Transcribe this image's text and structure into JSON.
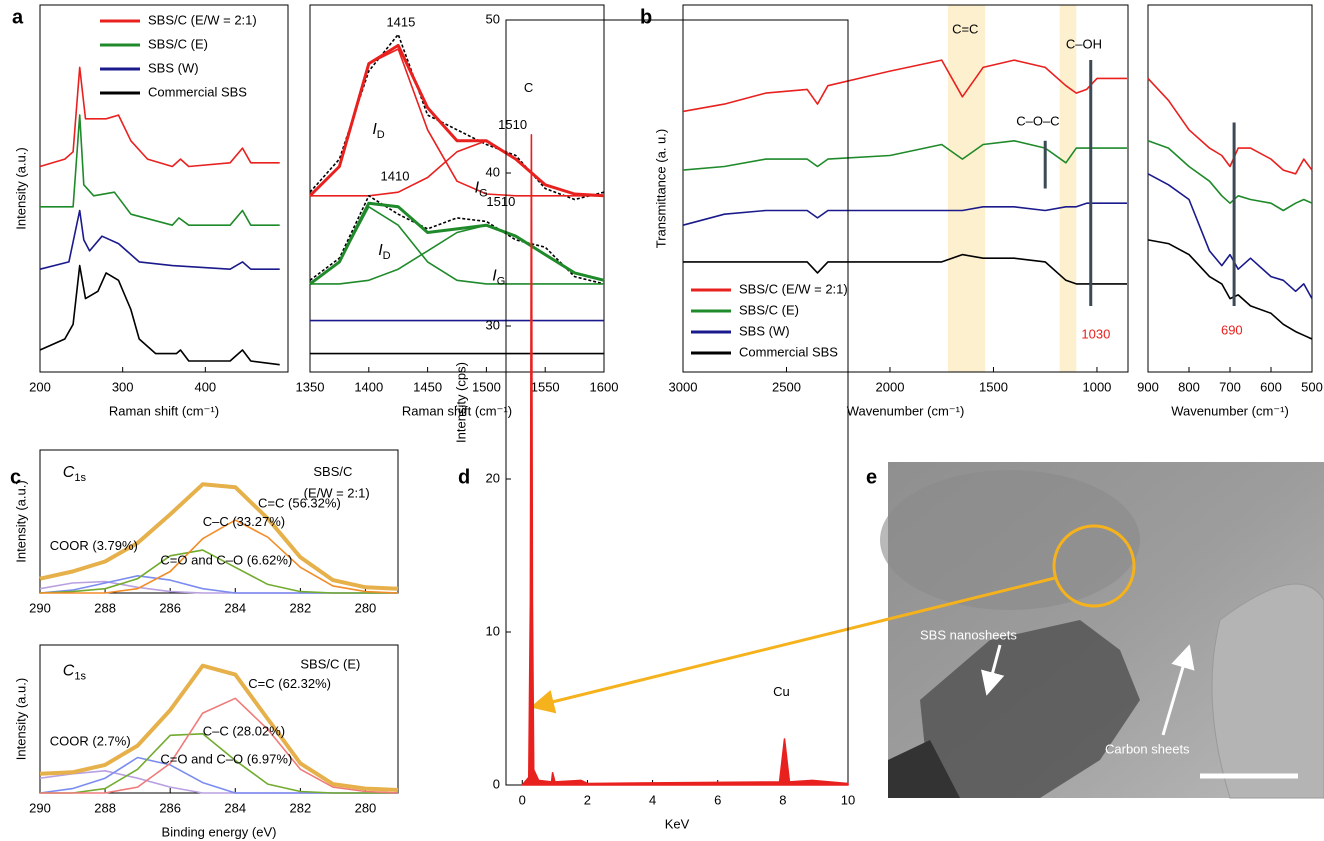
{
  "chart_data": [
    {
      "type": "line",
      "panel": "a",
      "xlabel": "Raman shift (cm⁻¹)",
      "ylabel": "Intensity (a.u.)",
      "xlim": [
        200,
        500
      ],
      "ylim": [
        0,
        10
      ],
      "xticks": [
        200,
        300,
        400
      ],
      "legend": "upper left",
      "series": [
        {
          "name": "SBS/C (E/W = 2:1)",
          "color": "#e8211f",
          "x": [
            200,
            230,
            240,
            248,
            255,
            265,
            280,
            295,
            310,
            330,
            360,
            370,
            380,
            430,
            445,
            455,
            490
          ],
          "values": [
            5.6,
            5.8,
            6.0,
            8.3,
            6.9,
            6.9,
            6.9,
            7.0,
            6.3,
            5.8,
            5.6,
            5.8,
            5.6,
            5.7,
            6.1,
            5.7,
            5.7
          ]
        },
        {
          "name": "SBS/C (E)",
          "color": "#1f8a2a",
          "x": [
            200,
            240,
            248,
            253,
            265,
            290,
            310,
            360,
            368,
            380,
            430,
            445,
            455,
            490
          ],
          "values": [
            4.5,
            4.5,
            7.0,
            5.1,
            4.8,
            4.9,
            4.3,
            4.0,
            4.2,
            4.0,
            4.0,
            4.4,
            4.0,
            4.0
          ]
        },
        {
          "name": "SBS (W)",
          "color": "#1a1a8c",
          "x": [
            200,
            235,
            248,
            253,
            260,
            275,
            295,
            320,
            360,
            430,
            445,
            455,
            490
          ],
          "values": [
            2.8,
            3.0,
            4.4,
            3.6,
            3.3,
            3.7,
            3.5,
            3.0,
            2.9,
            2.8,
            3.0,
            2.8,
            2.8
          ]
        },
        {
          "name": "Commercial SBS",
          "color": "#000000",
          "x": [
            200,
            230,
            240,
            248,
            255,
            270,
            280,
            295,
            310,
            320,
            340,
            365,
            370,
            380,
            430,
            445,
            455,
            490
          ],
          "values": [
            0.6,
            0.9,
            1.3,
            2.9,
            2.0,
            2.2,
            2.7,
            2.5,
            1.7,
            0.9,
            0.5,
            0.5,
            0.6,
            0.3,
            0.3,
            0.6,
            0.3,
            0.2
          ]
        }
      ]
    },
    {
      "type": "line",
      "xlabel": "Raman shift (cm⁻¹)",
      "xlim": [
        1350,
        1600
      ],
      "ylim": [
        0,
        10
      ],
      "xticks": [
        1350,
        1400,
        1450,
        1500,
        1550,
        1600
      ],
      "x": [
        1350,
        1375,
        1400,
        1425,
        1450,
        1475,
        1500,
        1525,
        1550,
        1575,
        1600
      ],
      "series": [
        {
          "color": "#000000",
          "style": "dashed",
          "values": [
            4.9,
            5.8,
            8.2,
            9.2,
            7.0,
            6.6,
            6.2,
            5.9,
            5.0,
            4.7,
            4.9
          ]
        },
        {
          "color": "#e8211f",
          "values": [
            4.8,
            5.6,
            8.4,
            8.8,
            6.6,
            5.2,
            4.85,
            4.8,
            4.8,
            4.8,
            4.8
          ]
        },
        {
          "color": "#e8211f",
          "values": [
            4.8,
            4.8,
            4.8,
            4.9,
            5.3,
            6.0,
            6.3,
            5.8,
            5.1,
            4.85,
            4.8
          ]
        },
        {
          "color": "#e8211f",
          "width": 3,
          "values": [
            4.8,
            5.6,
            8.4,
            8.9,
            7.2,
            6.3,
            6.3,
            5.8,
            5.1,
            4.85,
            4.8
          ]
        },
        {
          "color": "#000000",
          "style": "dashed",
          "values": [
            2.5,
            3.1,
            4.8,
            4.3,
            3.9,
            4.2,
            4.1,
            3.6,
            3.4,
            2.6,
            2.4
          ]
        },
        {
          "color": "#1f8a2a",
          "values": [
            2.4,
            3.0,
            4.5,
            4.0,
            3.0,
            2.5,
            2.4,
            2.4,
            2.4,
            2.4,
            2.4
          ]
        },
        {
          "color": "#1f8a2a",
          "values": [
            2.4,
            2.4,
            2.5,
            2.8,
            3.3,
            3.8,
            4.0,
            3.7,
            3.2,
            2.7,
            2.5
          ]
        },
        {
          "color": "#1f8a2a",
          "width": 3,
          "values": [
            2.4,
            3.0,
            4.6,
            4.5,
            3.8,
            3.9,
            4.0,
            3.7,
            3.2,
            2.7,
            2.5
          ]
        },
        {
          "color": "#1a1a8c",
          "values": [
            1.4,
            1.4,
            1.4,
            1.4,
            1.4,
            1.4,
            1.4,
            1.4,
            1.4,
            1.4,
            1.4
          ]
        },
        {
          "color": "#000000",
          "values": [
            0.5,
            0.5,
            0.5,
            0.5,
            0.5,
            0.5,
            0.5,
            0.5,
            0.5,
            0.5,
            0.5
          ]
        }
      ],
      "annotations": [
        {
          "text": "1415",
          "x": 1415,
          "y": 9.5
        },
        {
          "text": "1510",
          "x": 1510,
          "y": 6.7
        },
        {
          "text": "I",
          "sub": "D",
          "x": 1403,
          "y": 6.6
        },
        {
          "text": "I",
          "sub": "G",
          "x": 1490,
          "y": 5.0
        },
        {
          "text": "1410",
          "x": 1410,
          "y": 5.3
        },
        {
          "text": "1510",
          "x": 1500,
          "y": 4.6
        },
        {
          "text": "I",
          "sub": "D",
          "x": 1408,
          "y": 3.3
        },
        {
          "text": "I",
          "sub": "G",
          "x": 1505,
          "y": 2.6
        }
      ]
    },
    {
      "type": "line",
      "panel": "b",
      "xlabel": "Wavenumber (cm⁻¹)",
      "ylabel": "Transmittance (a. u.)",
      "xlim": [
        3000,
        850
      ],
      "ylim": [
        0,
        10
      ],
      "xticks": [
        3000,
        2500,
        2000,
        1500,
        1000
      ],
      "legend": "lower left",
      "x": [
        3000,
        2800,
        2600,
        2400,
        2350,
        2300,
        2000,
        1750,
        1650,
        1550,
        1400,
        1250,
        1150,
        1100,
        1050,
        1000,
        900,
        855
      ],
      "bands": [
        [
          1720,
          1540
        ],
        [
          1180,
          1100
        ]
      ],
      "band_color": "#fdf0cf",
      "vlines": [
        {
          "x": 1250,
          "range": [
            5.0,
            6.3
          ]
        },
        {
          "x": 1030,
          "range": [
            1.8,
            8.5
          ]
        }
      ],
      "series": [
        {
          "name": "SBS/C (E/W = 2:1)",
          "color": "#e8211f",
          "values": [
            7.1,
            7.3,
            7.6,
            7.7,
            7.3,
            7.8,
            8.2,
            8.5,
            7.5,
            8.3,
            8.5,
            8.3,
            7.8,
            7.6,
            7.7,
            8.0,
            8.0,
            8.0
          ]
        },
        {
          "name": "SBS/C (E)",
          "color": "#1f8a2a",
          "values": [
            5.5,
            5.6,
            5.8,
            5.8,
            5.6,
            5.8,
            5.9,
            6.2,
            5.8,
            6.2,
            6.3,
            6.1,
            5.7,
            6.1,
            6.1,
            6.1,
            6.1,
            6.1
          ]
        },
        {
          "name": "SBS (W)",
          "color": "#1a1a8c",
          "values": [
            4.0,
            4.3,
            4.4,
            4.4,
            4.2,
            4.4,
            4.4,
            4.4,
            4.4,
            4.5,
            4.5,
            4.4,
            4.5,
            4.5,
            4.6,
            4.6,
            4.6,
            4.6
          ]
        },
        {
          "name": "Commercial SBS",
          "color": "#000000",
          "values": [
            3.0,
            3.0,
            3.0,
            3.0,
            2.7,
            3.0,
            3.0,
            3.0,
            3.2,
            3.1,
            3.1,
            3.0,
            2.5,
            2.4,
            2.4,
            2.4,
            2.4,
            2.4
          ]
        }
      ],
      "annotations": [
        {
          "text": "C=C",
          "x": 1700,
          "y": 9.3
        },
        {
          "text": "C–OH",
          "x": 1150,
          "y": 8.9
        },
        {
          "text": "C–O–C",
          "x": 1390,
          "y": 6.8
        },
        {
          "text": "1030",
          "x": 1075,
          "y": 1.0,
          "color": "#e8211f"
        }
      ]
    },
    {
      "type": "line",
      "xlabel": "Wavenumber (cm⁻¹)",
      "xlim": [
        900,
        500
      ],
      "ylim": [
        0,
        10
      ],
      "xticks": [
        900,
        800,
        700,
        600,
        500
      ],
      "x": [
        900,
        850,
        800,
        750,
        720,
        700,
        680,
        650,
        600,
        570,
        540,
        520,
        500
      ],
      "vlines": [
        {
          "x": 690,
          "range": [
            1.8,
            6.8
          ]
        }
      ],
      "series": [
        {
          "color": "#e8211f",
          "values": [
            8.0,
            7.4,
            6.6,
            6.1,
            5.9,
            5.6,
            6.1,
            6.1,
            5.8,
            5.5,
            5.4,
            5.8,
            5.5
          ]
        },
        {
          "color": "#1f8a2a",
          "values": [
            6.3,
            6.1,
            5.6,
            5.2,
            4.8,
            4.6,
            4.8,
            4.7,
            4.6,
            4.4,
            4.6,
            4.7,
            4.6
          ]
        },
        {
          "color": "#1a1a8c",
          "values": [
            5.4,
            5.1,
            4.7,
            3.3,
            2.9,
            3.2,
            2.8,
            3.1,
            2.6,
            2.5,
            2.2,
            2.4,
            2.0
          ]
        },
        {
          "color": "#000000",
          "values": [
            3.6,
            3.5,
            3.2,
            2.6,
            2.4,
            2.0,
            2.1,
            1.8,
            1.6,
            1.3,
            1.1,
            1.0,
            0.9
          ]
        }
      ],
      "annotations": [
        {
          "text": "690",
          "x": 722,
          "y": 1.1,
          "color": "#e8211f"
        }
      ]
    },
    {
      "type": "line",
      "panel": "c",
      "ylabel": "Intensity (a.u.)",
      "xlim": [
        290,
        279
      ],
      "ylim": [
        0,
        10
      ],
      "xticks": [
        290,
        288,
        286,
        284,
        282,
        280
      ],
      "x": [
        290,
        289,
        288,
        287,
        286,
        285,
        284,
        283,
        282,
        281,
        280,
        279
      ],
      "series": [
        {
          "color": "#b9a0e0",
          "values": [
            0.3,
            0.7,
            0.8,
            0.4,
            0.1,
            0,
            0,
            0,
            0,
            0,
            0,
            0
          ]
        },
        {
          "color": "#7b8cf0",
          "values": [
            0,
            0.2,
            0.7,
            1.2,
            0.9,
            0.3,
            0,
            0,
            0,
            0,
            0,
            0
          ]
        },
        {
          "color": "#72ab2e",
          "values": [
            0,
            0.1,
            0.3,
            1.0,
            2.6,
            3.0,
            1.8,
            0.6,
            0.1,
            0,
            0,
            0
          ]
        },
        {
          "color": "#f28c28",
          "values": [
            0,
            0,
            0,
            0.3,
            1.5,
            3.8,
            5.1,
            3.9,
            1.8,
            0.5,
            0.1,
            0
          ]
        },
        {
          "color": "#e6b04a",
          "width": 4,
          "values": [
            1.0,
            1.5,
            2.2,
            3.5,
            5.5,
            7.6,
            7.4,
            5.2,
            2.5,
            0.9,
            0.4,
            0.3
          ]
        }
      ],
      "annotations": [
        {
          "text": "C",
          "sub": "1s",
          "x": 289.3,
          "y": 8.4
        },
        {
          "text": "SBS/C",
          "x": 281.6,
          "y": 8.4
        },
        {
          "text": "(E/W = 2:1)",
          "x": 281.9,
          "y": 6.9
        },
        {
          "text": "C=C (56.32%)",
          "x": 283.3,
          "y": 6.2
        },
        {
          "text": "C–C (33.27%)",
          "x": 285.0,
          "y": 4.9
        },
        {
          "text": "C=O and C–O (6.62%)",
          "x": 286.3,
          "y": 2.2
        },
        {
          "text": "COOR (3.79%)",
          "x": 289.7,
          "y": 3.2
        }
      ]
    },
    {
      "type": "line",
      "xlabel": "Binding energy (eV)",
      "ylabel": "Intensity (a.u.)",
      "xlim": [
        290,
        279
      ],
      "ylim": [
        0,
        10
      ],
      "xticks": [
        290,
        288,
        286,
        284,
        282,
        280
      ],
      "x": [
        290,
        289,
        288,
        287,
        286,
        285,
        284,
        283,
        282,
        281,
        280,
        279
      ],
      "series": [
        {
          "color": "#b9a0e0",
          "values": [
            1.0,
            1.3,
            1.5,
            1.0,
            0.4,
            0,
            0,
            0,
            0,
            0,
            0,
            0
          ]
        },
        {
          "color": "#7b8cf0",
          "values": [
            0,
            0.3,
            1.0,
            2.4,
            1.9,
            0.7,
            0,
            0,
            0,
            0,
            0,
            0
          ]
        },
        {
          "color": "#72ab2e",
          "values": [
            0,
            0,
            0.3,
            1.6,
            3.9,
            4.0,
            2.2,
            0.6,
            0.1,
            0,
            0,
            0
          ]
        },
        {
          "color": "#f07a7a",
          "values": [
            0,
            0,
            0,
            0.4,
            2.0,
            5.4,
            6.4,
            4.3,
            1.6,
            0.4,
            0.1,
            0
          ]
        },
        {
          "color": "#e6b04a",
          "width": 4,
          "values": [
            1.3,
            1.4,
            1.9,
            3.2,
            5.6,
            8.6,
            8.0,
            5.0,
            2.0,
            0.6,
            0.3,
            0.2
          ]
        }
      ],
      "annotations": [
        {
          "text": "C",
          "sub": "1s",
          "x": 289.3,
          "y": 8.2
        },
        {
          "text": "SBS/C (E)",
          "x": 282.0,
          "y": 8.6
        },
        {
          "text": "C=C (62.32%)",
          "x": 283.6,
          "y": 7.3
        },
        {
          "text": "C–C (28.02%)",
          "x": 285.0,
          "y": 4.1
        },
        {
          "text": "C=O and C–O (6.97%)",
          "x": 286.3,
          "y": 2.2
        },
        {
          "text": "COOR (2.7%)",
          "x": 289.7,
          "y": 3.4
        }
      ]
    },
    {
      "type": "line",
      "panel": "d",
      "xlabel": "KeV",
      "ylabel": "Intensity (cps)",
      "xlim": [
        -0.5,
        10
      ],
      "ylim": [
        0,
        50
      ],
      "xticks": [
        0,
        2,
        4,
        6,
        8,
        10
      ],
      "yticks": [
        0,
        10,
        20,
        30,
        40,
        50
      ],
      "fill": true,
      "x": [
        0,
        0.2,
        0.25,
        0.28,
        0.31,
        0.35,
        0.5,
        0.9,
        0.93,
        1.0,
        1.8,
        2,
        7.9,
        8.05,
        8.2,
        8.9,
        10
      ],
      "series": [
        {
          "color": "#e8211f",
          "values": [
            0,
            0.5,
            12,
            42.5,
            12,
            1,
            0.3,
            0.2,
            0.8,
            0.2,
            0.3,
            0.1,
            0.2,
            3,
            0.2,
            0.3,
            0.1
          ]
        }
      ],
      "annotations": [
        {
          "text": "C",
          "x": 0.05,
          "y": 45.5
        },
        {
          "text": "Cu",
          "x": 7.7,
          "y": 6
        }
      ]
    },
    {
      "type": "image",
      "panel": "e",
      "labels": [
        "SBS nanosheets",
        "Carbon sheets"
      ]
    }
  ]
}
